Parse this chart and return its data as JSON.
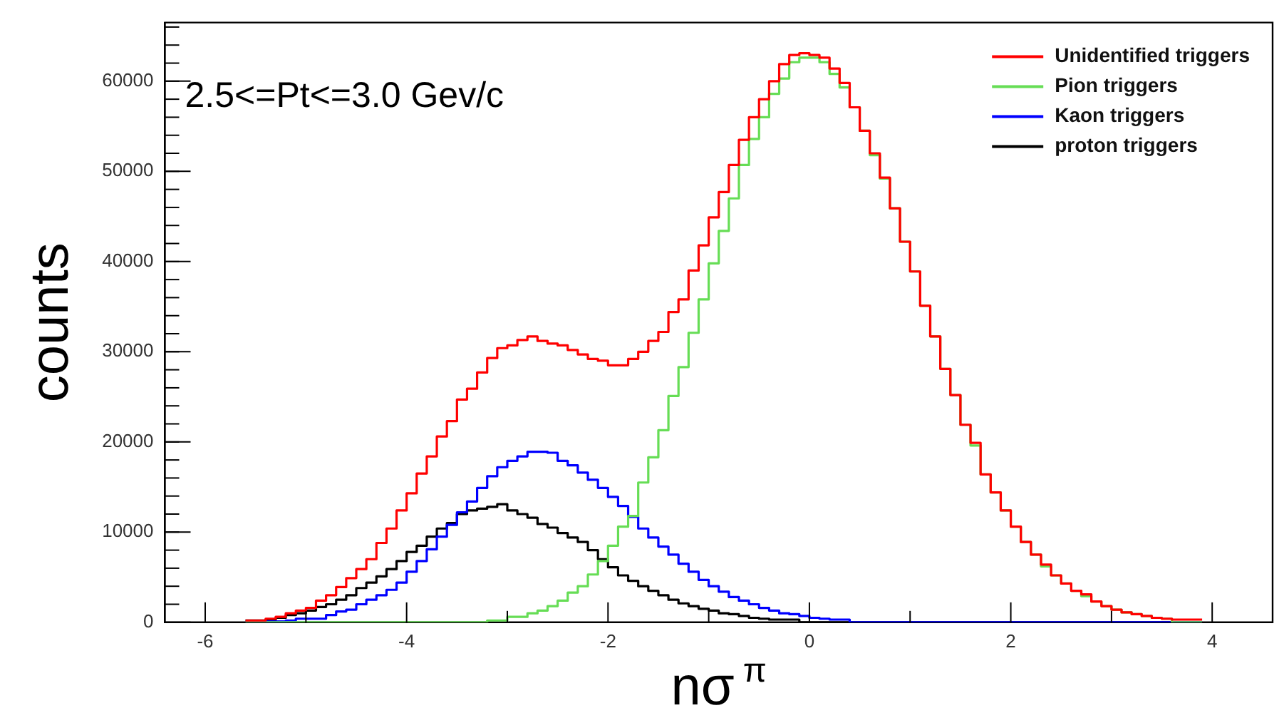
{
  "chart_data": {
    "type": "histogram",
    "xlabel": "nσ$^{π}$",
    "ylabel": "counts",
    "annotations": [
      "2.5<=Pt<=3.0 Gev/c"
    ],
    "legend": "top right",
    "xlim": [
      -6.4,
      4.6
    ],
    "ylim": [
      0,
      66500
    ],
    "xticks": [
      -6,
      -4,
      -2,
      0,
      2,
      4
    ],
    "yticks": [
      0,
      10000,
      20000,
      30000,
      40000,
      50000,
      60000
    ],
    "bins": [
      -5.6,
      -5.5,
      -5.4,
      -5.3,
      -5.2,
      -5.1,
      -5.0,
      -4.9,
      -4.8,
      -4.7,
      -4.6,
      -4.5,
      -4.4,
      -4.3,
      -4.2,
      -4.1,
      -4.0,
      -3.9,
      -3.8,
      -3.7,
      -3.6,
      -3.5,
      -3.4,
      -3.3,
      -3.2,
      -3.1,
      -3.0,
      -2.9,
      -2.8,
      -2.7,
      -2.6,
      -2.5,
      -2.4,
      -2.3,
      -2.2,
      -2.1,
      -2.0,
      -1.9,
      -1.8,
      -1.7,
      -1.6,
      -1.5,
      -1.4,
      -1.3,
      -1.2,
      -1.1,
      -1.0,
      -0.9,
      -0.8,
      -0.7,
      -0.6,
      -0.5,
      -0.4,
      -0.3,
      -0.2,
      -0.1,
      0.0,
      0.1,
      0.2,
      0.3,
      0.4,
      0.5,
      0.6,
      0.7,
      0.8,
      0.9,
      1.0,
      1.1,
      1.2,
      1.3,
      1.4,
      1.5,
      1.6,
      1.7,
      1.8,
      1.9,
      2.0,
      2.1,
      2.2,
      2.3,
      2.4,
      2.5,
      2.6,
      2.7,
      2.8,
      2.9,
      3.0,
      3.1,
      3.2,
      3.3,
      3.4,
      3.5,
      3.6,
      3.7,
      3.8,
      3.9
    ],
    "series": [
      {
        "name": "Unidentified triggers",
        "color": "#ff0000",
        "values": [
          200,
          200,
          400,
          600,
          1000,
          1300,
          1600,
          2400,
          3000,
          3900,
          4900,
          5900,
          7000,
          8800,
          10400,
          12400,
          14300,
          16500,
          18400,
          20600,
          22300,
          24700,
          25900,
          27700,
          29300,
          30400,
          30700,
          31300,
          31700,
          31200,
          30900,
          30700,
          30200,
          29700,
          29200,
          29000,
          28500,
          28500,
          29200,
          30000,
          31200,
          32200,
          34400,
          35800,
          39000,
          41800,
          44900,
          47700,
          50700,
          53500,
          56000,
          58000,
          60000,
          61900,
          62900,
          63100,
          62900,
          62600,
          61400,
          59800,
          57100,
          54500,
          52000,
          49300,
          45900,
          42200,
          38900,
          35100,
          31700,
          28100,
          25200,
          21900,
          19900,
          16400,
          14400,
          12400,
          10600,
          8900,
          7500,
          6400,
          5200,
          4300,
          3500,
          3100,
          2300,
          1800,
          1400,
          1100,
          900,
          700,
          500,
          400,
          300,
          300,
          300
        ]
      },
      {
        "name": "Pion triggers",
        "color": "#66dd55",
        "values": [
          0,
          0,
          0,
          0,
          0,
          0,
          0,
          0,
          0,
          0,
          0,
          0,
          0,
          0,
          0,
          0,
          0,
          0,
          0,
          0,
          0,
          0,
          0,
          0,
          200,
          200,
          600,
          600,
          1000,
          1300,
          1800,
          2400,
          3300,
          4000,
          5300,
          6800,
          8500,
          10600,
          11800,
          15500,
          18300,
          21300,
          25100,
          28300,
          32100,
          35800,
          39800,
          43400,
          47000,
          50700,
          53600,
          56000,
          58600,
          60300,
          62100,
          62600,
          62600,
          62100,
          60800,
          59300,
          57100,
          54500,
          51800,
          49200,
          45900,
          42200,
          38900,
          35100,
          31700,
          28100,
          25200,
          21900,
          19600,
          16400,
          14400,
          12400,
          10600,
          8900,
          7500,
          6200,
          5200,
          4300,
          3500,
          2900,
          2300,
          1800,
          1400,
          1100,
          900,
          700,
          500,
          400,
          0,
          0,
          0
        ]
      },
      {
        "name": "Kaon triggers",
        "color": "#0000ff",
        "values": [
          0,
          100,
          100,
          100,
          200,
          400,
          400,
          400,
          800,
          1200,
          1400,
          2000,
          2500,
          3000,
          3600,
          4400,
          5600,
          6800,
          8100,
          9500,
          10800,
          12200,
          13400,
          14900,
          16200,
          17200,
          17900,
          18400,
          18900,
          18900,
          18800,
          17900,
          17400,
          16600,
          15800,
          14900,
          13900,
          12900,
          11700,
          10400,
          9400,
          8400,
          7500,
          6500,
          5600,
          4700,
          4000,
          3400,
          2800,
          2400,
          2000,
          1600,
          1300,
          1000,
          900,
          700,
          500,
          400,
          300,
          300,
          0,
          0,
          0,
          0,
          0,
          0,
          0,
          0,
          0,
          0,
          0,
          0,
          0,
          0,
          0,
          0,
          0,
          0,
          0,
          0,
          0,
          0,
          0,
          0,
          0,
          0,
          0,
          0,
          0,
          0,
          0,
          0,
          0,
          0,
          0
        ]
      },
      {
        "name": "proton triggers",
        "color": "#000000",
        "values": [
          200,
          200,
          300,
          500,
          800,
          1000,
          1300,
          1700,
          2000,
          2500,
          3000,
          3800,
          4400,
          5100,
          5900,
          6800,
          7800,
          8500,
          9500,
          10400,
          11000,
          12000,
          12400,
          12600,
          12800,
          13100,
          12400,
          12000,
          11600,
          10900,
          10500,
          9900,
          9400,
          8900,
          8000,
          7000,
          6100,
          5200,
          4600,
          4000,
          3500,
          3000,
          2500,
          2100,
          1800,
          1500,
          1300,
          1000,
          900,
          700,
          500,
          400,
          300,
          300,
          300,
          0,
          0,
          0,
          0,
          0,
          0,
          0,
          0,
          0,
          0,
          0,
          0,
          0,
          0,
          0,
          0,
          0,
          0,
          0,
          0,
          0,
          0,
          0,
          0,
          0,
          0,
          0,
          0,
          0,
          0,
          0,
          0,
          0,
          0,
          0,
          0,
          0,
          0,
          0,
          0
        ]
      }
    ]
  }
}
